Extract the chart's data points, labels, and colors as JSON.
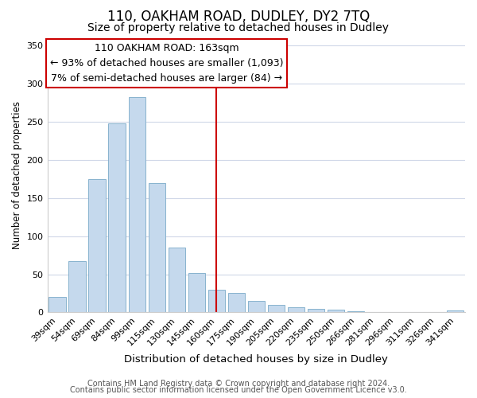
{
  "title": "110, OAKHAM ROAD, DUDLEY, DY2 7TQ",
  "subtitle": "Size of property relative to detached houses in Dudley",
  "xlabel": "Distribution of detached houses by size in Dudley",
  "ylabel": "Number of detached properties",
  "bar_labels": [
    "39sqm",
    "54sqm",
    "69sqm",
    "84sqm",
    "99sqm",
    "115sqm",
    "130sqm",
    "145sqm",
    "160sqm",
    "175sqm",
    "190sqm",
    "205sqm",
    "220sqm",
    "235sqm",
    "250sqm",
    "266sqm",
    "281sqm",
    "296sqm",
    "311sqm",
    "326sqm",
    "341sqm"
  ],
  "bar_values": [
    20,
    67,
    175,
    248,
    282,
    170,
    85,
    52,
    30,
    25,
    15,
    10,
    7,
    5,
    4,
    1,
    0,
    0,
    0,
    0,
    2
  ],
  "bar_color": "#c5d9ed",
  "bar_edge_color": "#7aaac8",
  "vline_x": 8,
  "vline_color": "#cc0000",
  "annotation_title": "110 OAKHAM ROAD: 163sqm",
  "annotation_line1": "← 93% of detached houses are smaller (1,093)",
  "annotation_line2": "7% of semi-detached houses are larger (84) →",
  "ylim": [
    0,
    360
  ],
  "yticks": [
    0,
    50,
    100,
    150,
    200,
    250,
    300,
    350
  ],
  "grid_color": "#d0d8e8",
  "footer1": "Contains HM Land Registry data © Crown copyright and database right 2024.",
  "footer2": "Contains public sector information licensed under the Open Government Licence v3.0.",
  "title_fontsize": 12,
  "subtitle_fontsize": 10,
  "xlabel_fontsize": 9.5,
  "ylabel_fontsize": 8.5,
  "tick_fontsize": 8,
  "footer_fontsize": 7,
  "annotation_fontsize": 9
}
